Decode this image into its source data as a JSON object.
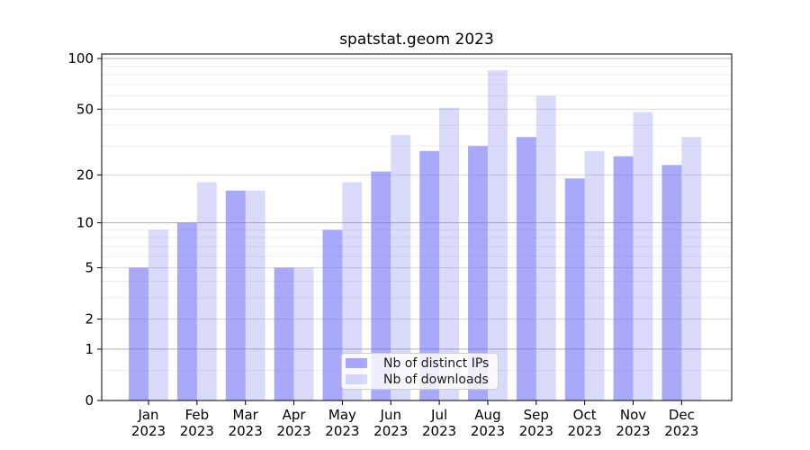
{
  "chart_data": {
    "type": "bar",
    "title": "spatstat.geom 2023",
    "categories": [
      "Jan",
      "Feb",
      "Mar",
      "Apr",
      "May",
      "Jun",
      "Jul",
      "Aug",
      "Sep",
      "Oct",
      "Nov",
      "Dec"
    ],
    "category_year": "2023",
    "series": [
      {
        "name": "Nb of distinct IPs",
        "key": "distinct-ips",
        "fill": "rgba(116,116,247,0.62)",
        "color_hex": "#a9a9fa",
        "values": [
          5,
          10,
          16,
          5,
          9,
          21,
          28,
          30,
          34,
          19,
          26,
          23
        ]
      },
      {
        "name": "Nb of downloads",
        "key": "downloads",
        "fill": "rgba(120,120,240,0.27)",
        "color_hex": "#dbdbfa",
        "values": [
          9,
          18,
          16,
          5,
          18,
          35,
          51,
          85,
          60,
          28,
          48,
          34
        ]
      }
    ],
    "y_axis": {
      "scale": "log1p",
      "ylim": [
        0,
        100
      ],
      "ticks": [
        0,
        1,
        2,
        5,
        10,
        20,
        50,
        100
      ],
      "decade_gridlines": [
        1,
        10,
        100
      ],
      "mid_gridlines": [
        2,
        5,
        20,
        50
      ],
      "minor_gridlines": [
        0.5,
        3,
        4,
        6,
        7,
        8,
        9,
        30,
        40,
        60,
        70,
        80,
        90
      ]
    },
    "legend_position": "lower center inside plot",
    "grid": true
  },
  "colors": {
    "grid_decade": "#b0b0b0",
    "grid_mid": "#d9d9d9",
    "grid_minor": "#eeeeee",
    "spine": "#000000",
    "text": "#000000",
    "background": "#ffffff"
  }
}
